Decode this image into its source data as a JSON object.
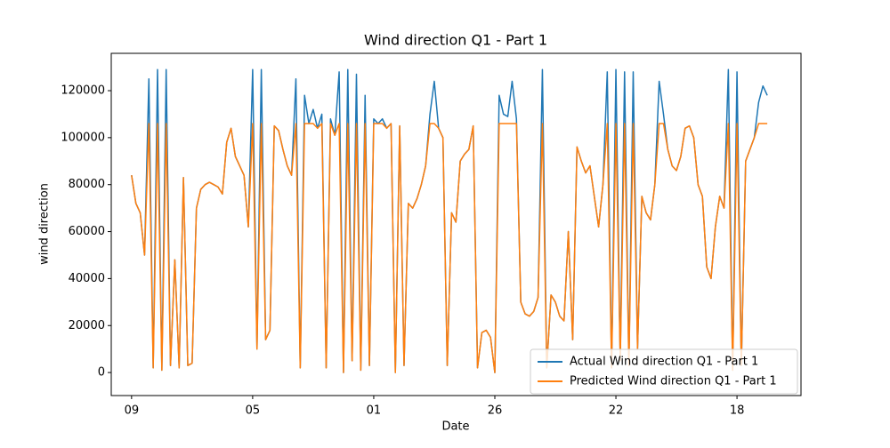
{
  "chart_data": {
    "type": "line",
    "title": "Wind direction Q1 - Part 1",
    "xlabel": "Date",
    "ylabel": "wind direction",
    "x": [
      0,
      1,
      2,
      3,
      4,
      5,
      6,
      7,
      8,
      9,
      10,
      11,
      12,
      13,
      14,
      15,
      16,
      17,
      18,
      19,
      20,
      21,
      22,
      23,
      24,
      25,
      26,
      27,
      28,
      29,
      30,
      31,
      32,
      33,
      34,
      35,
      36,
      37,
      38,
      39,
      40,
      41,
      42,
      43,
      44,
      45,
      46,
      47,
      48,
      49,
      50,
      51,
      52,
      53,
      54,
      55,
      56,
      57,
      58,
      59,
      60,
      61,
      62,
      63,
      64,
      65,
      66,
      67,
      68,
      69,
      70,
      71,
      72,
      73,
      74,
      75,
      76,
      77,
      78,
      79,
      80,
      81,
      82,
      83,
      84,
      85,
      86,
      87,
      88,
      89,
      90,
      91,
      92,
      93,
      94,
      95,
      96,
      97,
      98,
      99,
      100,
      101,
      102,
      103,
      104,
      105,
      106,
      107,
      108,
      109,
      110,
      111,
      112,
      113,
      114,
      115,
      116,
      117,
      118,
      119,
      120,
      121,
      122,
      123,
      124,
      125,
      126,
      127,
      128,
      129,
      130,
      131,
      132,
      133,
      134,
      135,
      136,
      137,
      138,
      139,
      140,
      141,
      142,
      143,
      144,
      145,
      146,
      147
    ],
    "series": [
      {
        "name": "Actual Wind direction Q1 - Part 1",
        "color": "#1f77b4",
        "values": [
          84000,
          72000,
          68000,
          50000,
          125000,
          2000,
          129000,
          1000,
          129000,
          3000,
          48000,
          2000,
          83000,
          3000,
          4000,
          70000,
          78000,
          80000,
          81000,
          80000,
          79000,
          76000,
          98000,
          104000,
          92000,
          88000,
          84000,
          62000,
          129000,
          10000,
          129000,
          14000,
          18000,
          105000,
          103000,
          95000,
          88000,
          84000,
          125000,
          2000,
          118000,
          106000,
          112000,
          104000,
          110000,
          2000,
          108000,
          101000,
          128000,
          0,
          129000,
          5000,
          127000,
          1000,
          118000,
          3000,
          108000,
          106000,
          108000,
          104000,
          106000,
          0,
          105000,
          3000,
          72000,
          70000,
          74000,
          80000,
          88000,
          110000,
          124000,
          104000,
          100000,
          3000,
          68000,
          64000,
          90000,
          93000,
          95000,
          105000,
          2000,
          17000,
          18000,
          15000,
          0,
          118000,
          110000,
          109000,
          124000,
          108000,
          30000,
          25000,
          24000,
          26000,
          32000,
          129000,
          2000,
          33000,
          30000,
          24000,
          22000,
          60000,
          14000,
          96000,
          90000,
          85000,
          88000,
          75000,
          62000,
          80000,
          128000,
          2000,
          129000,
          5000,
          128000,
          3000,
          128000,
          10000,
          75000,
          68000,
          65000,
          80000,
          124000,
          110000,
          95000,
          88000,
          86000,
          92000,
          104000,
          105000,
          100000,
          80000,
          75000,
          45000,
          40000,
          62000,
          75000,
          70000,
          129000,
          1000,
          128000,
          3000,
          90000,
          95000,
          100000,
          115000,
          122000,
          118000
        ]
      },
      {
        "name": "Predicted Wind direction Q1 - Part 1",
        "color": "#ff7f0e",
        "values": [
          84000,
          72000,
          68000,
          50000,
          106000,
          2000,
          106000,
          1000,
          106000,
          3000,
          48000,
          2000,
          83000,
          3000,
          4000,
          70000,
          78000,
          80000,
          81000,
          80000,
          79000,
          76000,
          98000,
          104000,
          92000,
          88000,
          84000,
          62000,
          106000,
          10000,
          106000,
          14000,
          18000,
          105000,
          103000,
          95000,
          88000,
          84000,
          106000,
          2000,
          106000,
          106000,
          106000,
          104000,
          106000,
          2000,
          106000,
          101000,
          106000,
          0,
          106000,
          5000,
          106000,
          1000,
          106000,
          3000,
          106000,
          106000,
          106000,
          104000,
          106000,
          0,
          105000,
          3000,
          72000,
          70000,
          74000,
          80000,
          88000,
          106000,
          106000,
          104000,
          100000,
          3000,
          68000,
          64000,
          90000,
          93000,
          95000,
          105000,
          2000,
          17000,
          18000,
          15000,
          0,
          106000,
          106000,
          106000,
          106000,
          106000,
          30000,
          25000,
          24000,
          26000,
          32000,
          106000,
          2000,
          33000,
          30000,
          24000,
          22000,
          60000,
          14000,
          96000,
          90000,
          85000,
          88000,
          75000,
          62000,
          80000,
          106000,
          2000,
          106000,
          5000,
          106000,
          3000,
          106000,
          10000,
          75000,
          68000,
          65000,
          80000,
          106000,
          106000,
          95000,
          88000,
          86000,
          92000,
          104000,
          105000,
          100000,
          80000,
          75000,
          45000,
          40000,
          62000,
          75000,
          70000,
          106000,
          1000,
          106000,
          3000,
          90000,
          95000,
          100000,
          106000,
          106000,
          106000
        ]
      }
    ],
    "xlim": [
      -4.7,
      154.8
    ],
    "ylim": [
      -9800,
      135900
    ],
    "xticks": [
      {
        "value": 0,
        "label": "09"
      },
      {
        "value": 28,
        "label": "05"
      },
      {
        "value": 56,
        "label": "01"
      },
      {
        "value": 84,
        "label": "26"
      },
      {
        "value": 112,
        "label": "22"
      },
      {
        "value": 140,
        "label": "18"
      }
    ],
    "yticks": [
      0,
      20000,
      40000,
      60000,
      80000,
      100000,
      120000
    ],
    "legend": "lower right",
    "grid": false
  }
}
